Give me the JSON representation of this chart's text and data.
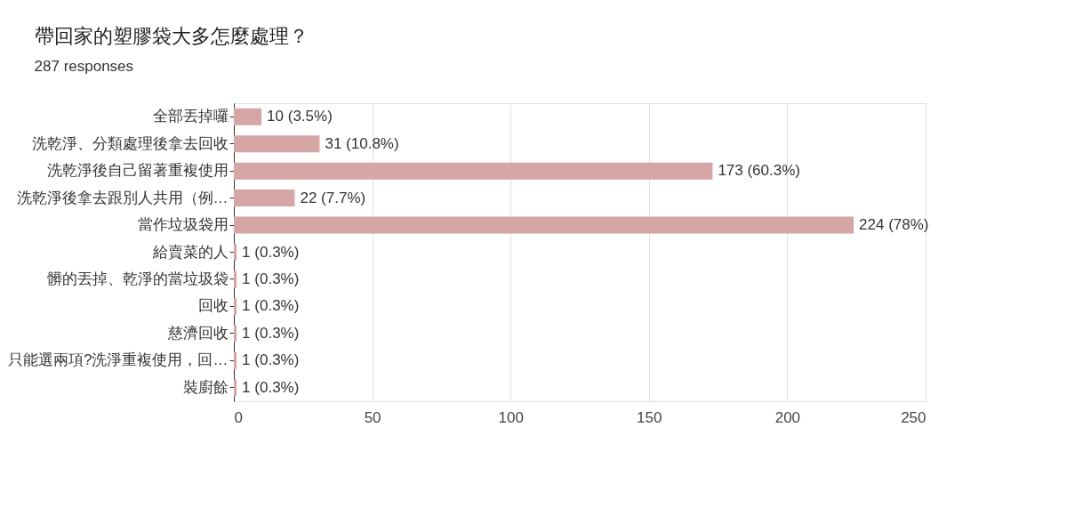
{
  "chart_data": {
    "type": "bar",
    "orientation": "horizontal",
    "title": "帶回家的塑膠袋大多怎麼處理？",
    "subtitle": "287 responses",
    "categories": [
      "全部丟掉囉",
      "洗乾淨、分類處理後拿去回收",
      "洗乾淨後自己留著重複使用",
      "洗乾淨後拿去跟別人共用（例…",
      "當作垃圾袋用",
      "給賣菜的人",
      "髒的丟掉、乾淨的當垃圾袋",
      "回收",
      "慈濟回收",
      "只能選兩項?洗淨重複使用，回…",
      "裝廚餘"
    ],
    "values": [
      10,
      31,
      173,
      22,
      224,
      1,
      1,
      1,
      1,
      1,
      1
    ],
    "value_labels": [
      "10 (3.5%)",
      "31 (10.8%)",
      "173 (60.3%)",
      "22 (7.7%)",
      "224 (78%)",
      "1 (0.3%)",
      "1 (0.3%)",
      "1 (0.3%)",
      "1 (0.3%)",
      "1 (0.3%)",
      "1 (0.3%)"
    ],
    "color": "#d5a6a5",
    "xlim": [
      0,
      250
    ],
    "xticks": [
      0,
      50,
      100,
      150,
      200,
      250
    ],
    "grid": "x"
  }
}
